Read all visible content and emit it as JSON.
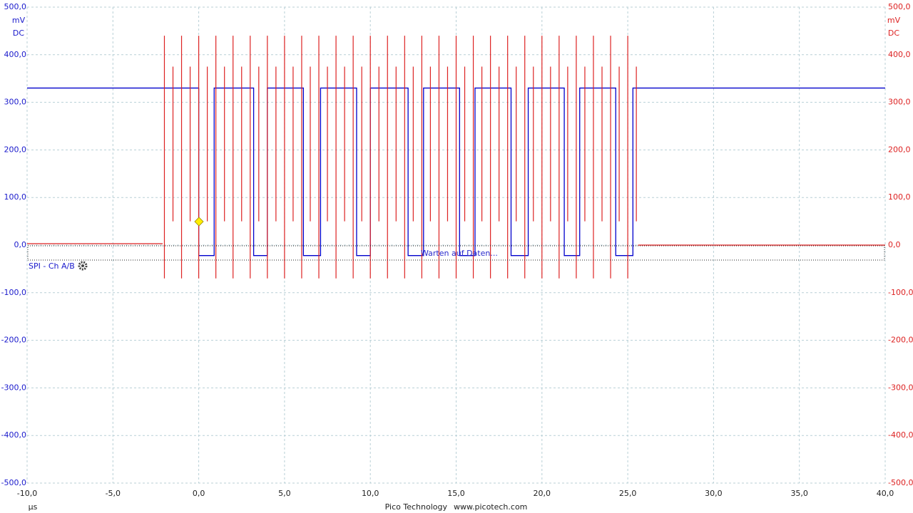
{
  "chart_data": {
    "type": "line",
    "x_unit": "µs",
    "y_unit": "mV",
    "coupling": "DC",
    "decoder_label": "SPI - Ch A/B",
    "status_text": "Warten auf Daten...",
    "footer_company": "Pico Technology",
    "footer_url": "www.picotech.com",
    "grid": true,
    "xlim": [
      -10,
      40
    ],
    "xticks": [
      {
        "value": -10,
        "label": "-10,0"
      },
      {
        "value": -5,
        "label": "-5,0"
      },
      {
        "value": 0,
        "label": "0,0"
      },
      {
        "value": 5,
        "label": "5,0"
      },
      {
        "value": 10,
        "label": "10,0"
      },
      {
        "value": 15,
        "label": "15,0"
      },
      {
        "value": 20,
        "label": "20,0"
      },
      {
        "value": 25,
        "label": "25,0"
      },
      {
        "value": 30,
        "label": "30,0"
      },
      {
        "value": 35,
        "label": "35,0"
      },
      {
        "value": 40,
        "label": "40,0"
      }
    ],
    "ylim": [
      -500,
      500
    ],
    "yticks": [
      {
        "value": 500,
        "label": "500,0"
      },
      {
        "value": 400,
        "label": "400,0"
      },
      {
        "value": 300,
        "label": "300,0"
      },
      {
        "value": 200,
        "label": "200,0"
      },
      {
        "value": 100,
        "label": "100,0"
      },
      {
        "value": 0,
        "label": "0,0"
      },
      {
        "value": -100,
        "label": "-100,0"
      },
      {
        "value": -200,
        "label": "-200,0"
      },
      {
        "value": -300,
        "label": "-300,0"
      },
      {
        "value": -400,
        "label": "-400,0"
      },
      {
        "value": -500,
        "label": "-500,0"
      }
    ],
    "y2lim": [
      -500,
      500
    ],
    "y2ticks": [
      {
        "value": 500,
        "label": "500,0"
      },
      {
        "value": 400,
        "label": "400,0"
      },
      {
        "value": 300,
        "label": "300,0"
      },
      {
        "value": 200,
        "label": "200,0"
      },
      {
        "value": 100,
        "label": "100,0"
      },
      {
        "value": 0,
        "label": "0,0"
      },
      {
        "value": -100,
        "label": "-100,0"
      },
      {
        "value": -200,
        "label": "-200,0"
      },
      {
        "value": -300,
        "label": "-300,0"
      },
      {
        "value": -400,
        "label": "-400,0"
      },
      {
        "value": -500,
        "label": "-500,0"
      }
    ],
    "y_color": "#1a1acc",
    "y2_color": "#dd2222",
    "series": [
      {
        "style": "line",
        "color": "#0000cc",
        "axis": "y",
        "x": [
          -10,
          0,
          0,
          0.9,
          0.9,
          3.2,
          3.2,
          4.0,
          4.0,
          6.1,
          6.1,
          7.1,
          7.1,
          9.2,
          9.2,
          10.0,
          10.0,
          12.2,
          12.2,
          13.1,
          13.1,
          15.2,
          15.2,
          16.1,
          16.1,
          18.2,
          18.2,
          19.2,
          19.2,
          21.3,
          21.3,
          22.2,
          22.2,
          24.3,
          24.3,
          25.3,
          25.3,
          40
        ],
        "values": [
          330,
          330,
          -22,
          -22,
          330,
          330,
          -22,
          -22,
          330,
          330,
          -22,
          -22,
          330,
          330,
          -22,
          -22,
          330,
          330,
          -22,
          -22,
          330,
          330,
          -22,
          -22,
          330,
          330,
          -22,
          -22,
          330,
          330,
          -22,
          -22,
          330,
          330,
          -22,
          -22,
          330,
          330
        ]
      },
      {
        "style": "line",
        "color": "#dd2222",
        "axis": "y2",
        "x": [
          -10,
          -2.1,
          0,
          25.6,
          40
        ],
        "values": [
          3,
          3,
          null,
          0,
          0
        ]
      },
      {
        "style": "spikes",
        "color": "#dd2222",
        "axis": "y2",
        "x": [
          -2,
          -1.5,
          -1,
          -0.5,
          0,
          0.5,
          1,
          1.5,
          2,
          2.5,
          3,
          3.5,
          4,
          4.5,
          5,
          5.5,
          6,
          6.5,
          7,
          7.5,
          8,
          8.5,
          9,
          9.5,
          10,
          10.5,
          11,
          11.5,
          12,
          12.5,
          13,
          13.5,
          14,
          14.5,
          15,
          15.5,
          16,
          16.5,
          17,
          17.5,
          18,
          18.5,
          19,
          19.5,
          20,
          20.5,
          21,
          21.5,
          22,
          22.5,
          23,
          23.5,
          24,
          24.5,
          25,
          25.5
        ],
        "high": [
          440,
          375,
          440,
          375,
          440,
          375,
          440,
          375,
          440,
          375,
          440,
          375,
          440,
          375,
          440,
          375,
          440,
          375,
          440,
          375,
          440,
          375,
          440,
          375,
          440,
          375,
          440,
          375,
          440,
          375,
          440,
          375,
          440,
          375,
          440,
          375,
          440,
          375,
          440,
          375,
          440,
          375,
          440,
          375,
          440,
          375,
          440,
          375,
          440,
          375,
          440,
          375,
          440,
          375,
          440,
          375
        ],
        "low": [
          -70,
          50,
          -70,
          50,
          -70,
          50,
          -70,
          50,
          -70,
          50,
          -70,
          50,
          -70,
          50,
          -70,
          50,
          -70,
          50,
          -70,
          50,
          -70,
          50,
          -70,
          50,
          -70,
          50,
          -70,
          50,
          -70,
          50,
          -70,
          50,
          -70,
          50,
          -70,
          50,
          -70,
          50,
          -70,
          50,
          -70,
          50,
          -70,
          50,
          -70,
          50,
          -70,
          50,
          -70,
          50,
          -70,
          50,
          -70,
          50,
          -70,
          50
        ]
      }
    ]
  }
}
